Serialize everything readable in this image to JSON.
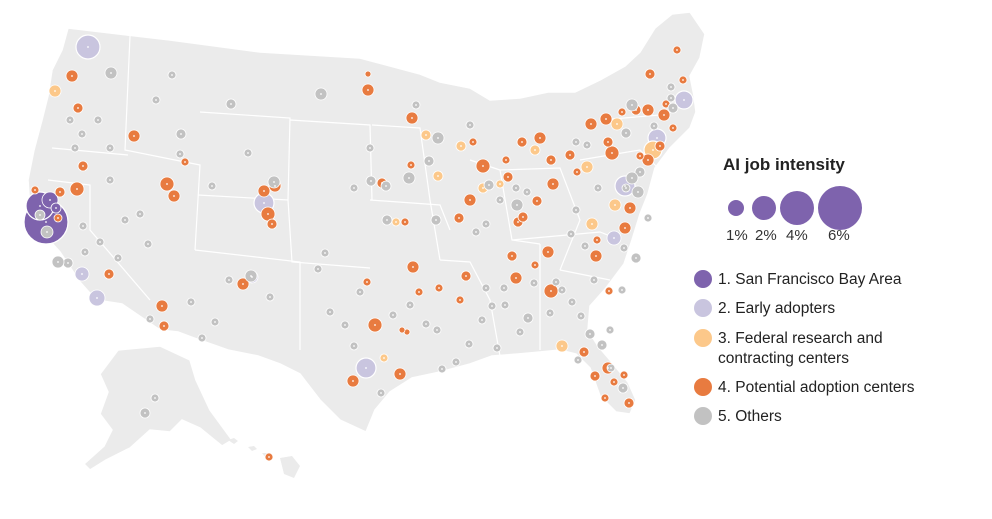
{
  "legend": {
    "title": "AI job intensity",
    "sizes": [
      {
        "label": "1%",
        "value": 1
      },
      {
        "label": "2%",
        "value": 2
      },
      {
        "label": "4%",
        "value": 4
      },
      {
        "label": "6%",
        "value": 6
      }
    ],
    "categories": [
      {
        "label": "1. San Francisco Bay Area",
        "color": "#7e63ad"
      },
      {
        "label": "2. Early adopters",
        "color": "#c9c5df"
      },
      {
        "label": "3. Federal research and contracting centers",
        "color": "#fcc88a"
      },
      {
        "label": "4. Potential adoption centers",
        "color": "#e87b40"
      },
      {
        "label": "5. Others",
        "color": "#c2c2c2"
      }
    ]
  },
  "colors": {
    "land": "#ebebeb",
    "border": "#ffffff",
    "bay_area": "#7e63ad",
    "early": "#c9c5df",
    "federal": "#fcc88a",
    "potential": "#e87b40",
    "others": "#c2c2c2"
  }
}
